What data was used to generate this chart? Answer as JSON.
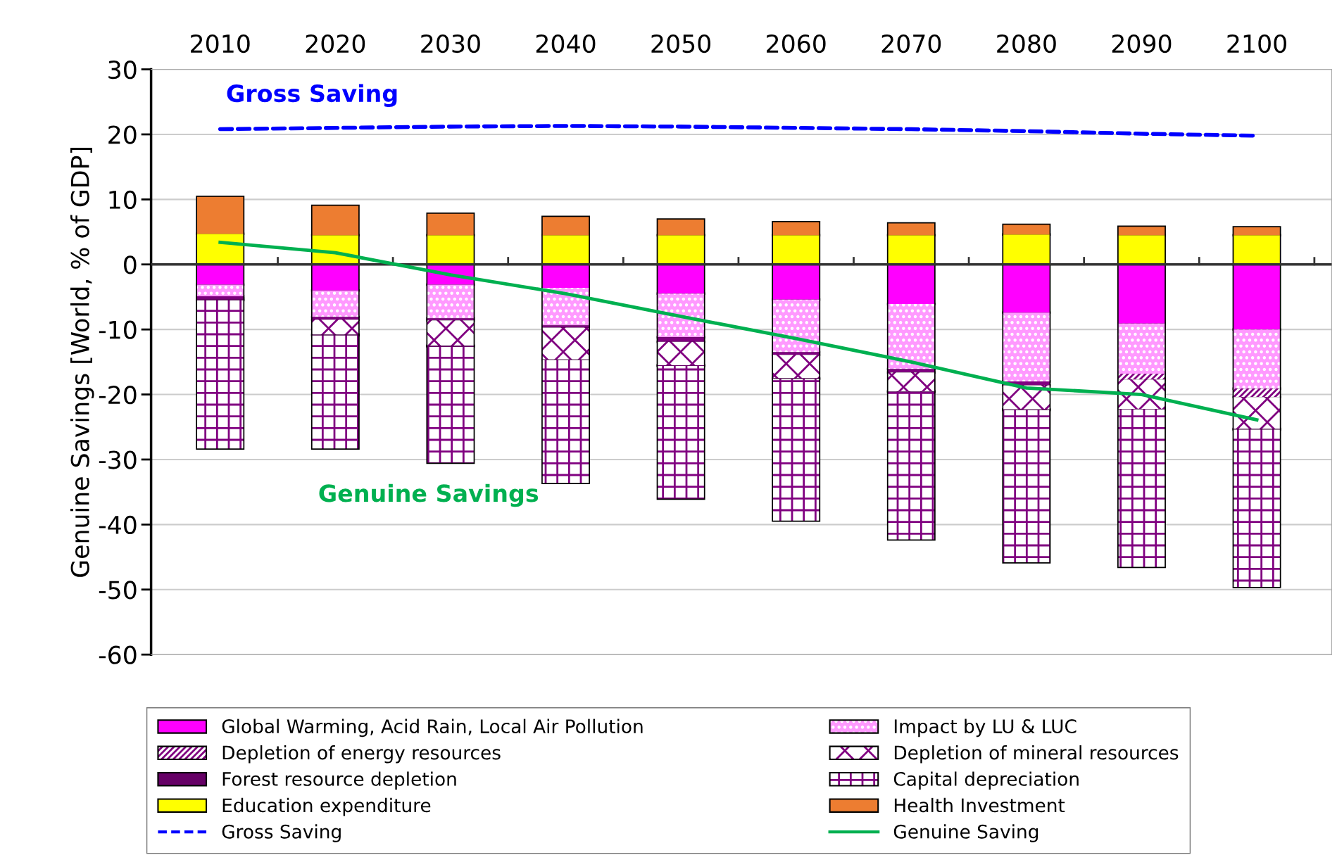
{
  "chart_data": {
    "type": "bar",
    "stacked": true,
    "ylabel": "Genuine Savings [World, % of GDP]",
    "categories": [
      "2010",
      "2020",
      "2030",
      "2040",
      "2050",
      "2060",
      "2070",
      "2080",
      "2090",
      "2100"
    ],
    "ylim": [
      -60,
      30
    ],
    "yticks": [
      -60,
      -50,
      -40,
      -30,
      -20,
      -10,
      0,
      10,
      20,
      30
    ],
    "grid": "y",
    "legend": "bottom",
    "annotations": [
      "Gross Saving",
      "Genuine Savings"
    ],
    "series": [
      {
        "name": "Global Warming, Acid Rain, Local Air Pollution",
        "color": "#ff00ff",
        "values": [
          -3.1,
          -4.0,
          -3.1,
          -3.6,
          -4.5,
          -5.4,
          -6.1,
          -7.4,
          -9.1,
          -10.0
        ]
      },
      {
        "name": "Impact by LU & LUC",
        "color": "#ff99ff",
        "values": [
          -1.8,
          -4.1,
          -5.2,
          -5.8,
          -6.7,
          -8.1,
          -10.0,
          -10.6,
          -7.7,
          -9.1
        ]
      },
      {
        "name": "Depletion of energy resources",
        "color": "#800080",
        "values": [
          -0.3,
          -0.4,
          -0.3,
          -0.3,
          -0.7,
          -0.4,
          -0.5,
          -0.6,
          -0.9,
          -1.3
        ]
      },
      {
        "name": "Depletion of mineral resources",
        "color": "#800080",
        "values": [
          -0.2,
          -2.3,
          -3.9,
          -4.9,
          -3.6,
          -3.6,
          -2.9,
          -3.7,
          -4.5,
          -4.9
        ]
      },
      {
        "name": "Forest resource depletion",
        "color": "#660066",
        "values": [
          -0.1,
          -0.1,
          -0.1,
          -0.1,
          -0.1,
          -0.1,
          -0.1,
          -0.1,
          -0.1,
          -0.1
        ]
      },
      {
        "name": "Capital depreciation",
        "color": "#800080",
        "values": [
          -22.8,
          -17.4,
          -17.9,
          -18.9,
          -20.4,
          -21.8,
          -22.7,
          -23.4,
          -24.2,
          -24.2
        ]
      },
      {
        "name": "Education expenditure",
        "color": "#ffff00",
        "values": [
          4.7,
          4.5,
          4.5,
          4.5,
          4.5,
          4.5,
          4.5,
          4.6,
          4.5,
          4.5
        ]
      },
      {
        "name": "Health Investment",
        "color": "#ed7d31",
        "values": [
          5.7,
          4.5,
          3.3,
          2.8,
          2.4,
          2.0,
          1.8,
          1.5,
          1.3,
          1.2
        ]
      },
      {
        "name": "Gross Saving",
        "type": "line",
        "line_style": "dashed",
        "color": "#0000ff",
        "values": [
          20.8,
          21.0,
          21.2,
          21.3,
          21.2,
          21.0,
          20.8,
          20.5,
          20.1,
          19.8
        ]
      },
      {
        "name": "Genuine Saving",
        "type": "line",
        "line_style": "solid",
        "color": "#00b050",
        "values": [
          3.4,
          1.8,
          -1.6,
          -4.5,
          -8.0,
          -11.4,
          -15.0,
          -19.0,
          -20.0,
          -23.9
        ]
      }
    ]
  }
}
